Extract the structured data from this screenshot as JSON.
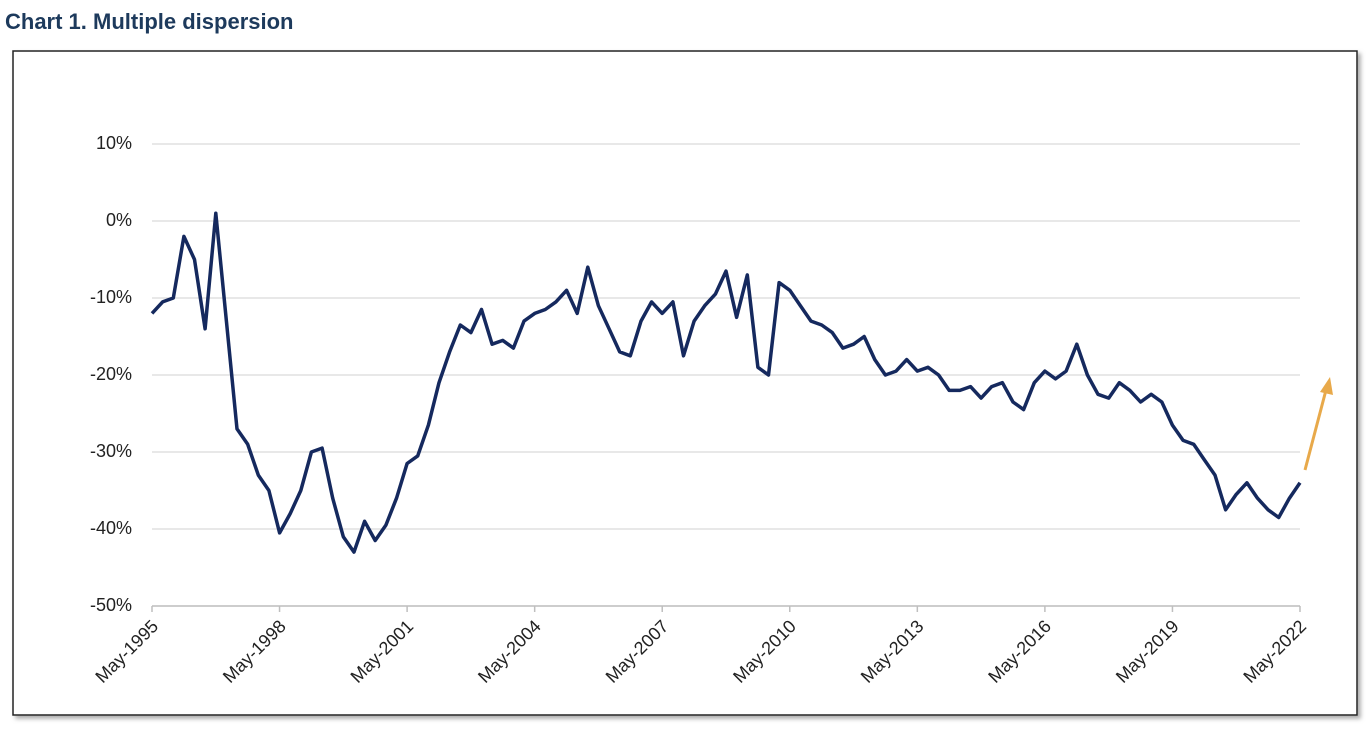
{
  "chart_data": {
    "type": "line",
    "title": "Chart 1. Multiple dispersion",
    "categories": [
      "May-1995",
      null,
      null,
      null,
      null,
      null,
      null,
      null,
      null,
      null,
      null,
      null,
      "May-1998",
      null,
      null,
      null,
      null,
      null,
      null,
      null,
      null,
      null,
      null,
      null,
      "May-2001",
      null,
      null,
      null,
      null,
      null,
      null,
      null,
      null,
      null,
      null,
      null,
      "May-2004",
      null,
      null,
      null,
      null,
      null,
      null,
      null,
      null,
      null,
      null,
      null,
      "May-2007",
      null,
      null,
      null,
      null,
      null,
      null,
      null,
      null,
      null,
      null,
      null,
      "May-2010",
      null,
      null,
      null,
      null,
      null,
      null,
      null,
      null,
      null,
      null,
      null,
      "May-2013",
      null,
      null,
      null,
      null,
      null,
      null,
      null,
      null,
      null,
      null,
      null,
      "May-2016",
      null,
      null,
      null,
      null,
      null,
      null,
      null,
      null,
      null,
      null,
      null,
      "May-2019",
      null,
      null,
      null,
      null,
      null,
      null,
      null,
      null,
      null,
      null,
      null,
      "May-2022"
    ],
    "series": [
      {
        "color": "#15295e",
        "values": [
          -12,
          -10.5,
          -10,
          -2,
          -5,
          -14,
          1,
          -13,
          -27,
          -29,
          -33,
          -35,
          -40.5,
          -38,
          -35,
          -30,
          -29.5,
          -36,
          -41,
          -43,
          -39,
          -41.5,
          -39.5,
          -36,
          -31.5,
          -30.5,
          -26.5,
          -21,
          -17,
          -13.5,
          -14.5,
          -11.5,
          -16,
          -15.5,
          -16.5,
          -13,
          -12,
          -11.5,
          -10.5,
          -9,
          -12,
          -6,
          -11,
          -14,
          -17,
          -17.5,
          -13,
          -10.5,
          -12,
          -10.5,
          -17.5,
          -13,
          -11,
          -9.5,
          -6.5,
          -12.5,
          -7,
          -19,
          -20,
          -8,
          -9,
          -11,
          -13,
          -13.5,
          -14.5,
          -16.5,
          -16,
          -15,
          -18,
          -20,
          -19.5,
          -18,
          -19.5,
          -19,
          -20,
          -22,
          -22,
          -21.5,
          -23,
          -21.5,
          -21,
          -23.5,
          -24.5,
          -21,
          -19.5,
          -20.5,
          -19.5,
          -16,
          -20,
          -22.5,
          -23,
          -21,
          -22,
          -23.5,
          -22.5,
          -23.5,
          -26.5,
          -28.5,
          -29,
          -31,
          -33,
          -37.5,
          -35.5,
          -34,
          -36,
          -37.5,
          -38.5,
          -36,
          -34
        ]
      }
    ],
    "ylim": [
      -50,
      10
    ],
    "yticks": [
      {
        "value": -50,
        "label": "-50%"
      },
      {
        "value": -40,
        "label": "-40%"
      },
      {
        "value": -30,
        "label": "-30%"
      },
      {
        "value": -20,
        "label": "-20%"
      },
      {
        "value": -10,
        "label": "-10%"
      },
      {
        "value": 0,
        "label": "0%"
      },
      {
        "value": 10,
        "label": "10%"
      }
    ],
    "grid": true
  }
}
